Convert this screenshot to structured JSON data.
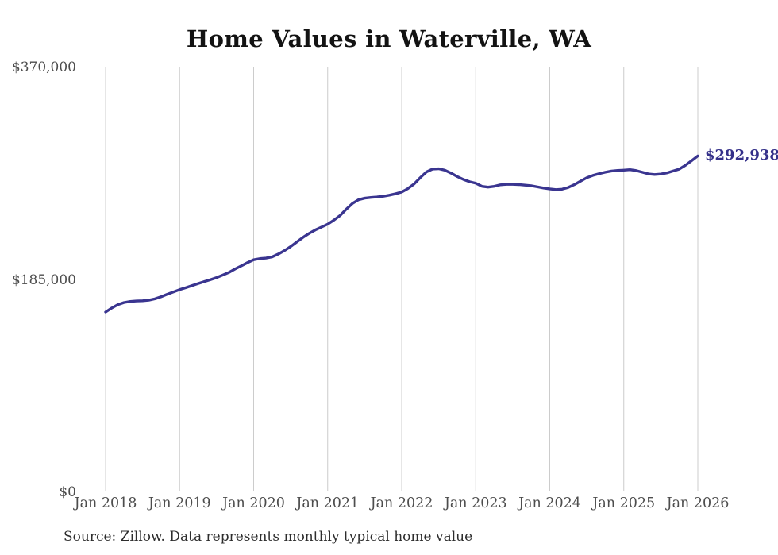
{
  "page": {
    "title": "Home Values in Waterville, WA",
    "source_note": "Source: Zillow. Data represents monthly typical home value"
  },
  "colors": {
    "line": "#3a3590",
    "grid": "#cccccc",
    "axis_text": "#4d4d4d",
    "title_text": "#131313",
    "annotation_text": "#343089",
    "background": "#ffffff"
  },
  "chart_data": {
    "type": "line",
    "title": "Home Values in Waterville, WA",
    "xlabel": "",
    "ylabel": "",
    "ylim": [
      0,
      370000
    ],
    "grid": "vertical",
    "legend": "none",
    "x_ticks": [
      "Jan 2018",
      "Jan 2019",
      "Jan 2020",
      "Jan 2021",
      "Jan 2022",
      "Jan 2023",
      "Jan 2024",
      "Jan 2025",
      "Jan 2026"
    ],
    "y_ticks": [
      {
        "label": "$370,000",
        "value": 370000
      },
      {
        "label": "$185,000",
        "value": 185000
      },
      {
        "label": "$0",
        "value": 0
      }
    ],
    "annotation": {
      "text": "$292,938",
      "value": 292938,
      "position": "line-end"
    },
    "series": [
      {
        "name": "Monthly typical home value",
        "x": [
          "2018-01",
          "2018-02",
          "2018-03",
          "2018-04",
          "2018-05",
          "2018-06",
          "2018-07",
          "2018-08",
          "2018-09",
          "2018-10",
          "2018-11",
          "2018-12",
          "2019-01",
          "2019-02",
          "2019-03",
          "2019-04",
          "2019-05",
          "2019-06",
          "2019-07",
          "2019-08",
          "2019-09",
          "2019-10",
          "2019-11",
          "2019-12",
          "2020-01",
          "2020-02",
          "2020-03",
          "2020-04",
          "2020-05",
          "2020-06",
          "2020-07",
          "2020-08",
          "2020-09",
          "2020-10",
          "2020-11",
          "2020-12",
          "2021-01",
          "2021-02",
          "2021-03",
          "2021-04",
          "2021-05",
          "2021-06",
          "2021-07",
          "2021-08",
          "2021-09",
          "2021-10",
          "2021-11",
          "2021-12",
          "2022-01",
          "2022-02",
          "2022-03",
          "2022-04",
          "2022-05",
          "2022-06",
          "2022-07",
          "2022-08",
          "2022-09",
          "2022-10",
          "2022-11",
          "2022-12",
          "2023-01",
          "2023-02",
          "2023-03",
          "2023-04",
          "2023-05",
          "2023-06",
          "2023-07",
          "2023-08",
          "2023-09",
          "2023-10",
          "2023-11",
          "2023-12",
          "2024-01",
          "2024-02",
          "2024-03",
          "2024-04",
          "2024-05",
          "2024-06",
          "2024-07",
          "2024-08",
          "2024-09",
          "2024-10",
          "2024-11",
          "2024-12",
          "2025-01",
          "2025-02",
          "2025-03",
          "2025-04",
          "2025-05",
          "2025-06",
          "2025-07",
          "2025-08",
          "2025-09",
          "2025-10",
          "2025-11",
          "2025-12",
          "2026-01"
        ],
        "values": [
          157000,
          160500,
          163500,
          165300,
          166200,
          166600,
          166800,
          167300,
          168500,
          170300,
          172500,
          174500,
          176500,
          178200,
          180000,
          181800,
          183500,
          185200,
          187000,
          189200,
          191500,
          194500,
          197200,
          200000,
          202500,
          203500,
          204000,
          205000,
          207500,
          210500,
          214000,
          218000,
          222000,
          225500,
          228500,
          231000,
          233500,
          237000,
          241000,
          246500,
          251500,
          254800,
          256200,
          256800,
          257200,
          257800,
          258800,
          260000,
          261500,
          264500,
          268500,
          274000,
          279000,
          281500,
          281800,
          280500,
          278000,
          275000,
          272500,
          270500,
          269200,
          266500,
          265800,
          266500,
          267800,
          268200,
          268200,
          268000,
          267500,
          267000,
          266000,
          265000,
          264200,
          263600,
          264000,
          265500,
          268000,
          271000,
          274000,
          276000,
          277500,
          278800,
          279800,
          280300,
          280600,
          281000,
          280200,
          278800,
          277300,
          276800,
          277200,
          278200,
          279800,
          281500,
          284800,
          288800,
          292938
        ]
      }
    ]
  }
}
